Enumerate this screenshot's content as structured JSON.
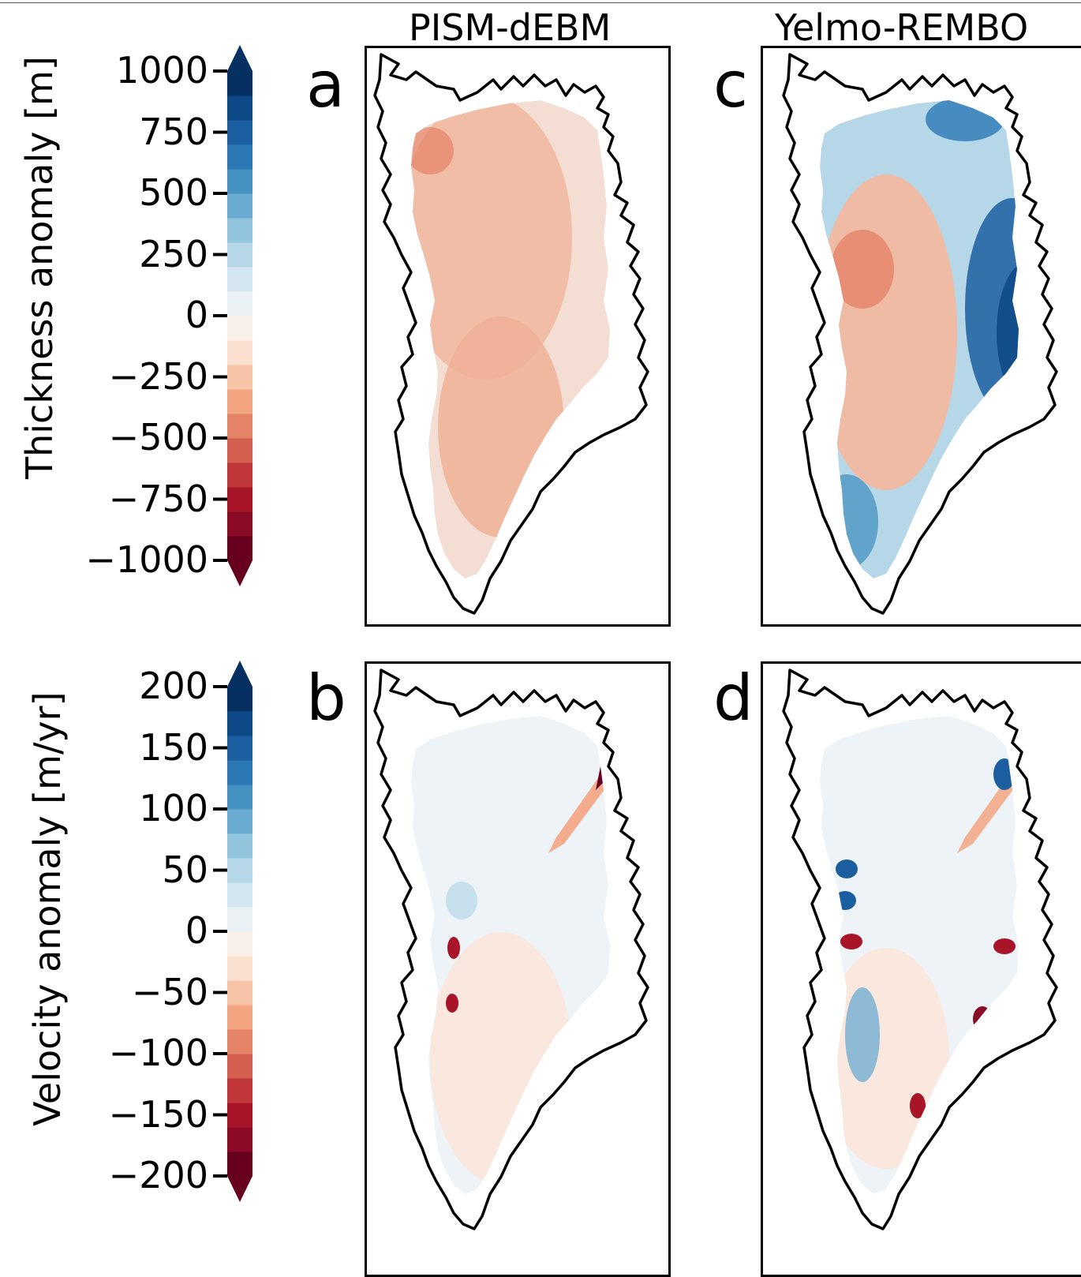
{
  "columns": {
    "pism": "PISM-dEBM",
    "yelmo": "Yelmo-REMBO"
  },
  "panels": {
    "a": "a",
    "b": "b",
    "c": "c",
    "d": "d"
  },
  "colorbars": {
    "thickness": {
      "label": "Thickness anomaly [m]",
      "ticks": [
        "1000",
        "750",
        "500",
        "250",
        "0",
        "−250",
        "−500",
        "−750",
        "−1000"
      ],
      "range": [
        -1000,
        1000
      ]
    },
    "velocity": {
      "label": "Velocity anomaly [m/yr]",
      "ticks": [
        "200",
        "150",
        "100",
        "50",
        "0",
        "−50",
        "−100",
        "−150",
        "−200"
      ],
      "range": [
        -200,
        200
      ]
    },
    "colormap": [
      "#67001f",
      "#8a0b25",
      "#a81529",
      "#c13639",
      "#d35f50",
      "#e58368",
      "#f3a481",
      "#f8c4a8",
      "#fbe0cf",
      "#f9efe9",
      "#eaf1f5",
      "#d4e6f1",
      "#b6d7e8",
      "#93c4de",
      "#6aabd1",
      "#4591c2",
      "#2c79b5",
      "#1b5fa0",
      "#0d4a87",
      "#053061"
    ]
  }
}
